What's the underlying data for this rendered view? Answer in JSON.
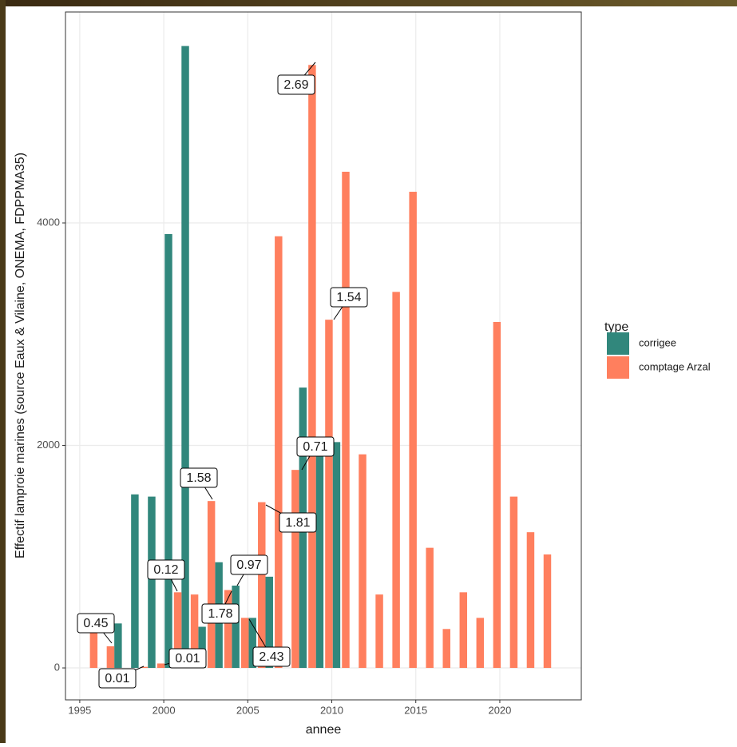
{
  "chart_data": {
    "type": "bar",
    "x_label": "annee",
    "y_label": "Effectif lamproie marines (source Eaux & Vilaine, ONEMA, FDPPMA35)",
    "legend_title": "type",
    "xlim": [
      1994.15,
      2024.85
    ],
    "xticks": [
      1995,
      2000,
      2005,
      2010,
      2015,
      2020
    ],
    "ylim": [
      -287,
      5896
    ],
    "yticks": [
      0,
      2000,
      4000
    ],
    "grid": true,
    "series": [
      {
        "name": "corrigee",
        "color": "#31877c",
        "x": [
          1997,
          1998,
          1999,
          2000,
          2001,
          2002,
          2003,
          2004,
          2005,
          2006,
          2008,
          2009,
          2010
        ],
        "values": [
          400,
          1560,
          1540,
          3900,
          5590,
          370,
          950,
          740,
          450,
          820,
          2520,
          2030,
          2030
        ]
      },
      {
        "name": "comptage Arzal",
        "color": "#ff7f5e",
        "x": [
          1996,
          1997,
          1999,
          2000,
          2001,
          2002,
          2003,
          2004,
          2005,
          2006,
          2007,
          2008,
          2009,
          2010,
          2011,
          2012,
          2013,
          2014,
          2015,
          2016,
          2017,
          2018,
          2019,
          2020,
          2021,
          2022,
          2023
        ],
        "values": [
          330,
          195,
          10,
          40,
          680,
          660,
          1500,
          700,
          450,
          1490,
          3880,
          1780,
          5420,
          3130,
          4460,
          1920,
          660,
          3380,
          4280,
          1080,
          350,
          680,
          450,
          3110,
          1540,
          1220,
          1020
        ]
      }
    ],
    "annotations": [
      {
        "text": "0.45"
      },
      {
        "text": "0.01"
      },
      {
        "text": "0.12"
      },
      {
        "text": "0.01"
      },
      {
        "text": "1.58"
      },
      {
        "text": "1.78"
      },
      {
        "text": "0.97"
      },
      {
        "text": "2.43"
      },
      {
        "text": "1.81"
      },
      {
        "text": "0.71"
      },
      {
        "text": "1.54"
      },
      {
        "text": "2.69"
      }
    ]
  }
}
